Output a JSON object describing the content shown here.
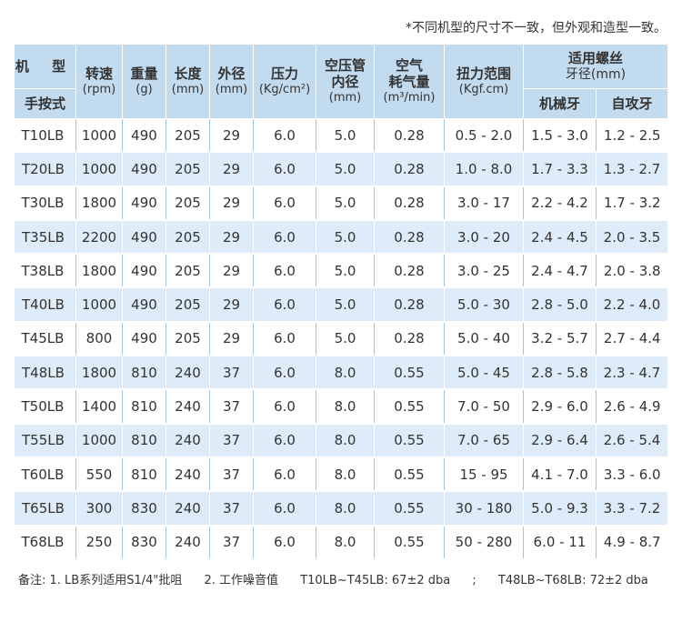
{
  "top_note": "*不同机型的尺寸不一致，但外观和造型一致。",
  "headers": {
    "model_top": "机 型",
    "model_sub": "手按式",
    "speed": {
      "main": "转速",
      "unit": "(rpm)"
    },
    "weight": {
      "main": "重量",
      "unit": "(g)"
    },
    "length": {
      "main": "长度",
      "unit": "(mm)"
    },
    "diameter": {
      "main": "外径",
      "unit": "(mm)"
    },
    "pressure": {
      "main": "压力",
      "unit": "(Kg/cm²)"
    },
    "hose": {
      "main1": "空压管",
      "main2": "内径",
      "unit": "(mm)"
    },
    "air": {
      "main1": "空气",
      "main2": "耗气量",
      "unit": "(m³/min)"
    },
    "torque": {
      "main": "扭力范围",
      "unit": "(Kgf.cm)"
    },
    "thread": {
      "main": "适用螺丝",
      "line2": "牙径(mm)",
      "sub1": "机械牙",
      "sub2": "自攻牙"
    }
  },
  "rows": [
    [
      "T10LB",
      "1000",
      "490",
      "205",
      "29",
      "6.0",
      "5.0",
      "0.28",
      "0.5 - 2.0",
      "1.5 - 3.0",
      "1.2 - 2.5"
    ],
    [
      "T20LB",
      "1000",
      "490",
      "205",
      "29",
      "6.0",
      "5.0",
      "0.28",
      "1.0 - 8.0",
      "1.7 - 3.3",
      "1.3 - 2.7"
    ],
    [
      "T30LB",
      "1800",
      "490",
      "205",
      "29",
      "6.0",
      "5.0",
      "0.28",
      "3.0 - 17",
      "2.2 - 4.2",
      "1.7 - 3.2"
    ],
    [
      "T35LB",
      "2200",
      "490",
      "205",
      "29",
      "6.0",
      "5.0",
      "0.28",
      "3.0 - 20",
      "2.4 - 4.5",
      "2.0 - 3.5"
    ],
    [
      "T38LB",
      "1800",
      "490",
      "205",
      "29",
      "6.0",
      "5.0",
      "0.28",
      "3.0 - 25",
      "2.4 - 4.7",
      "2.0 - 3.8"
    ],
    [
      "T40LB",
      "1000",
      "490",
      "205",
      "29",
      "6.0",
      "5.0",
      "0.28",
      "5.0 - 30",
      "2.8 - 5.0",
      "2.2 - 4.0"
    ],
    [
      "T45LB",
      "800",
      "490",
      "205",
      "29",
      "6.0",
      "5.0",
      "0.28",
      "5.0 - 40",
      "3.2 - 5.7",
      "2.7 - 4.4"
    ],
    [
      "T48LB",
      "1800",
      "810",
      "240",
      "37",
      "6.0",
      "8.0",
      "0.55",
      "5.0 - 45",
      "2.8 - 5.8",
      "2.3 - 4.7"
    ],
    [
      "T50LB",
      "1400",
      "810",
      "240",
      "37",
      "6.0",
      "8.0",
      "0.55",
      "7.0 - 50",
      "2.9 - 6.0",
      "2.6 - 4.9"
    ],
    [
      "T55LB",
      "1000",
      "810",
      "240",
      "37",
      "6.0",
      "8.0",
      "0.55",
      "7.0 - 65",
      "2.9 - 6.4",
      "2.6 - 5.4"
    ],
    [
      "T60LB",
      "550",
      "810",
      "240",
      "37",
      "6.0",
      "8.0",
      "0.55",
      "15 - 95",
      "4.1 - 7.0",
      "3.3 - 6.0"
    ],
    [
      "T65LB",
      "300",
      "830",
      "240",
      "37",
      "6.0",
      "8.0",
      "0.55",
      "30 - 180",
      "5.0 - 9.3",
      "3.3 - 7.2"
    ],
    [
      "T68LB",
      "250",
      "830",
      "240",
      "37",
      "6.0",
      "8.0",
      "0.55",
      "50 - 280",
      "6.0 - 11",
      "4.9 - 8.7"
    ]
  ],
  "bottom_note": {
    "part1": "备注: 1. LB系列适用S1/4\"批咀",
    "part2": "2. 工作噪音值",
    "part3": "T10LB~T45LB: 67±2 dba",
    "sep": ";",
    "part4": "T48LB~T68LB: 72±2 dba"
  },
  "colors": {
    "header_bg": "#c2dbef",
    "row_alt_bg": "#ddecf8",
    "divider": "#9bc4e4"
  }
}
